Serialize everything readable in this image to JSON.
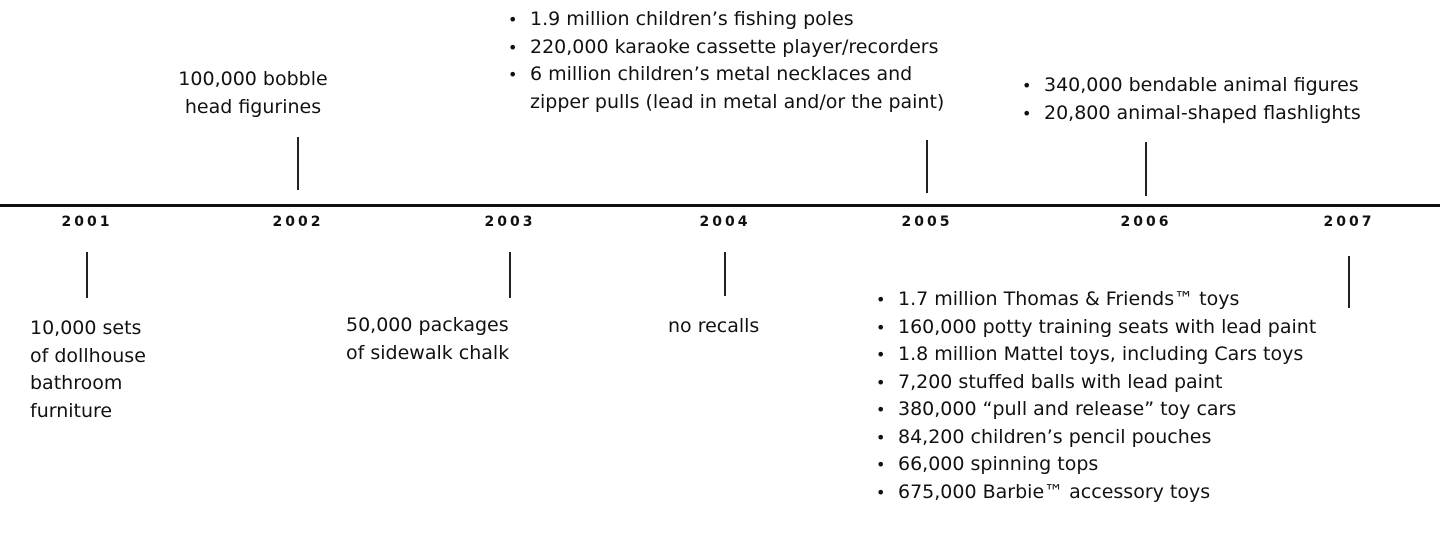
{
  "timeline": {
    "years": [
      {
        "year": "2001",
        "lines": [
          "10,000 sets",
          "of dollhouse",
          "bathroom",
          "furniture"
        ]
      },
      {
        "year": "2002",
        "lines": [
          "100,000 bobble",
          "head figurines"
        ]
      },
      {
        "year": "2003",
        "lines": [
          "50,000 packages",
          "of sidewalk chalk"
        ]
      },
      {
        "year": "2004",
        "lines": [
          "no recalls"
        ]
      },
      {
        "year": "2005",
        "items": [
          [
            "1.9 million children’s fishing poles"
          ],
          [
            "220,000 karaoke cassette player/recorders"
          ],
          [
            "6 million children’s metal necklaces and",
            "zipper pulls (lead in metal and/or the paint)"
          ]
        ]
      },
      {
        "year": "2006",
        "items": [
          [
            "340,000 bendable animal figures"
          ],
          [
            "20,800 animal-shaped flashlights"
          ]
        ]
      },
      {
        "year": "2007",
        "items": [
          [
            "1.7 million Thomas & Friends™ toys"
          ],
          [
            "160,000 potty training seats with lead paint"
          ],
          [
            "1.8 million Mattel toys, including Cars toys"
          ],
          [
            "7,200 stuffed balls with lead paint"
          ],
          [
            "380,000 “pull and release” toy cars"
          ],
          [
            "84,200 children’s pencil pouches"
          ],
          [
            "66,000 spinning tops"
          ],
          [
            "675,000 Barbie™ accessory toys"
          ]
        ]
      }
    ]
  }
}
